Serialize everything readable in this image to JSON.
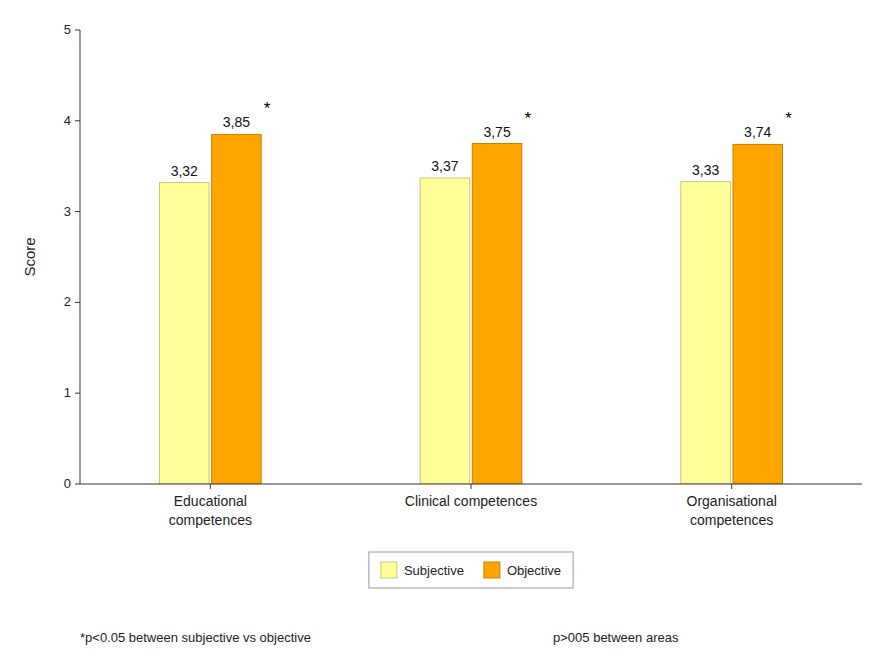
{
  "chart_data": {
    "type": "bar",
    "ylabel": "Score",
    "categories": [
      "Educational\ncompetences",
      "Clinical competences",
      "Organisational\ncompetences"
    ],
    "series": [
      {
        "name": "Subjective",
        "color": "#FFFF99",
        "values": [
          3.32,
          3.37,
          3.33
        ],
        "value_labels": [
          "3,32",
          "3,37",
          "3,33"
        ]
      },
      {
        "name": "Objective",
        "color": "#FFA500",
        "values": [
          3.85,
          3.75,
          3.74
        ],
        "value_labels": [
          "3,85",
          "3,75",
          "3,74"
        ],
        "annotations": [
          "*",
          "*",
          "*"
        ]
      }
    ],
    "ylim": [
      0,
      5
    ],
    "yticks": [
      0,
      1,
      2,
      3,
      4,
      5
    ],
    "grid": false,
    "legend": "bottom",
    "data_labels": true,
    "footnotes": [
      "*p<0.05 between subjective vs objective",
      "p>005 between areas"
    ]
  }
}
